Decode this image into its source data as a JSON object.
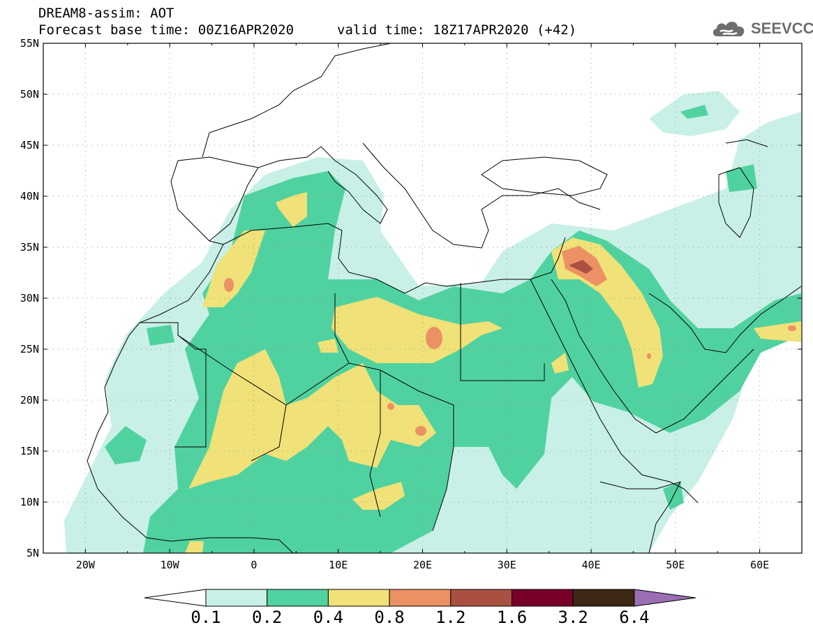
{
  "title": {
    "line1": "DREAM8-assim: AOT",
    "line2": "Forecast base time: 00Z16APR2020",
    "valid": "valid time: 18Z17APR2020 (+42)"
  },
  "logo": {
    "text": "SEEVCCC",
    "icon": "cloud-icon"
  },
  "map": {
    "lat_labels": [
      "55N",
      "50N",
      "45N",
      "40N",
      "35N",
      "30N",
      "25N",
      "20N",
      "15N",
      "10N",
      "5N"
    ],
    "lon_labels": [
      "20W",
      "10W",
      "0",
      "10E",
      "20E",
      "30E",
      "40E",
      "50E",
      "60E"
    ],
    "extent": {
      "lon": [
        -25,
        65
      ],
      "lat": [
        5,
        55
      ]
    }
  },
  "colorbar": {
    "labels": [
      "0.1",
      "0.2",
      "0.4",
      "0.8",
      "1.2",
      "1.6",
      "3.2",
      "6.4"
    ],
    "colors": [
      "#ffffff",
      "#c8f0e6",
      "#50d2a0",
      "#f0e178",
      "#eb9164",
      "#aa5040",
      "#780028",
      "#3c2814",
      "#9b6eb4"
    ]
  },
  "colors": {
    "background": "#ffffff",
    "lt01": "#ffffff",
    "c1": "#c8f0e6",
    "c2": "#50d2a0",
    "c3": "#f0e178",
    "c4": "#eb9164",
    "c5": "#aa5040",
    "border": "#000000"
  }
}
